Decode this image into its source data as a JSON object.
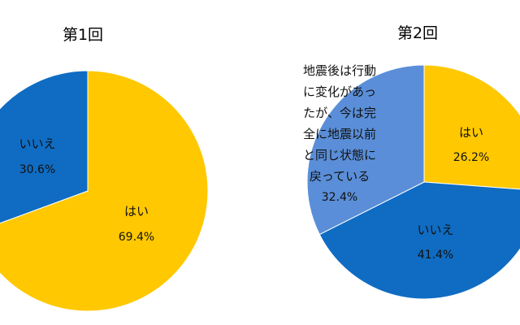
{
  "colors": {
    "yes": "#FFC800",
    "no": "#0F6CC2",
    "changed_back": "#5A8ED8",
    "stroke": "#ffffff",
    "text": "#111111"
  },
  "chart_data": [
    {
      "type": "pie",
      "title": "第1回",
      "slices": [
        {
          "label": "はい",
          "value": 69.4,
          "value_label": "69.4%",
          "color": "#FFC800"
        },
        {
          "label": "いいえ",
          "value": 30.6,
          "value_label": "30.6%",
          "color": "#0F6CC2"
        }
      ],
      "start_angle_deg": 0,
      "direction": "clockwise",
      "legend": "none"
    },
    {
      "type": "pie",
      "title": "第2回",
      "slices": [
        {
          "label": "はい",
          "value": 26.2,
          "value_label": "26.2%",
          "color": "#FFC800"
        },
        {
          "label": "いいえ",
          "value": 41.4,
          "value_label": "41.4%",
          "color": "#0F6CC2"
        },
        {
          "label": "地震後は行動に変化があったが、今は完全に地震以前と同じ状態に戻っている",
          "label_lines": [
            "地震後は行動",
            "に変化があっ",
            "たが、今は完",
            "全に地震以前",
            "と同じ状態に",
            "戻っている"
          ],
          "value": 32.4,
          "value_label": "32.4%",
          "color": "#5A8ED8"
        }
      ],
      "start_angle_deg": 0,
      "direction": "clockwise",
      "legend": "none"
    }
  ]
}
